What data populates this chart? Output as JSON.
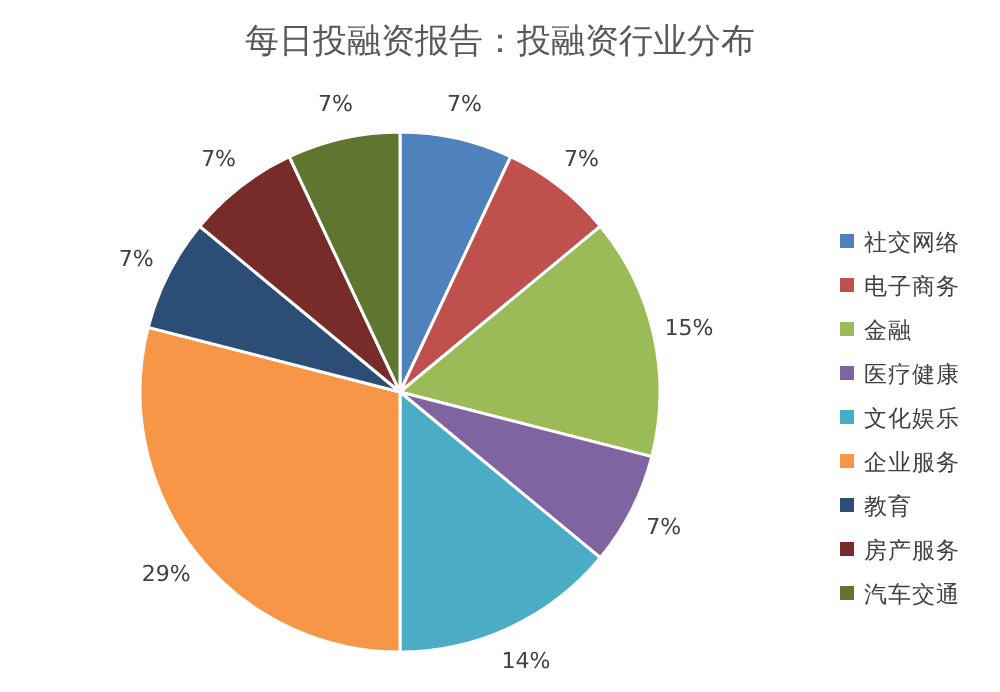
{
  "chart_data": {
    "type": "pie",
    "title": "每日投融资报告：投融资行业分布",
    "categories": [
      "社交网络",
      "电子商务",
      "金融",
      "医疗健康",
      "文化娱乐",
      "企业服务",
      "教育",
      "房产服务",
      "汽车交通"
    ],
    "values": [
      7,
      7,
      15,
      7,
      14,
      29,
      7,
      7,
      7
    ],
    "value_labels": [
      "7%",
      "7%",
      "15%",
      "7%",
      "14%",
      "29%",
      "7%",
      "7%",
      "7%"
    ],
    "colors": [
      "#4f81bd",
      "#c0504d",
      "#9bbb59",
      "#8064a2",
      "#4bacc6",
      "#f79646",
      "#2c4d75",
      "#772c2a",
      "#5f7530"
    ],
    "legend": "right"
  }
}
